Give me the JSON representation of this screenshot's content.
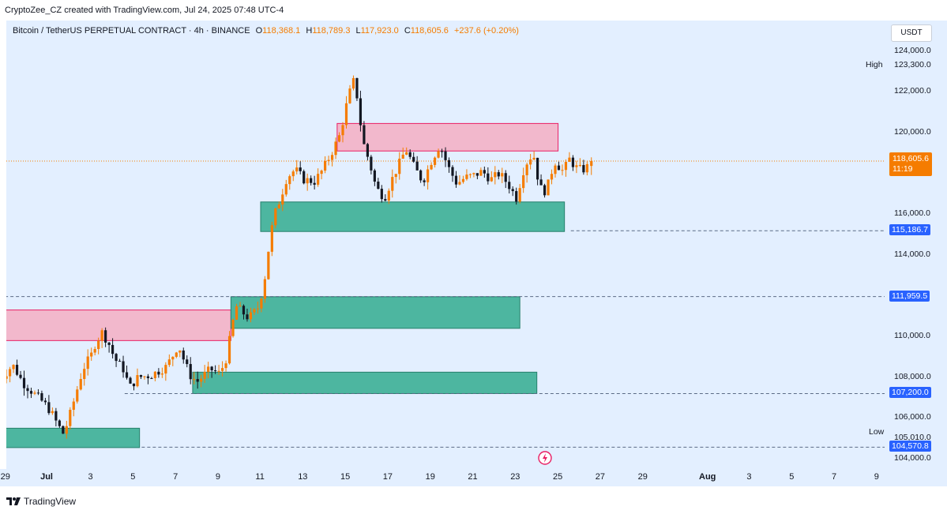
{
  "header": {
    "credit": "CryptoZee_CZ created with TradingView.com, Jul 24, 2025 07:48 UTC-4"
  },
  "legend": {
    "symbol": "Bitcoin / TetherUS PERPETUAL CONTRACT · 4h · BINANCE",
    "o_label": "O",
    "o_value": "118,368.1",
    "h_label": "H",
    "h_value": "118,789.3",
    "l_label": "L",
    "l_value": "117,923.0",
    "c_label": "C",
    "c_value": "118,605.6",
    "change": "+237.6 (+0.20%)"
  },
  "price_axis": {
    "currency": "USDT",
    "high_label": "High",
    "low_label": "Low",
    "current_price": "118,605.6",
    "countdown": "11:19"
  },
  "colors": {
    "background": "#e3efff",
    "up": "#f57c00",
    "down": "#131722",
    "supply_fill": "#f2b8cc",
    "supply_border": "#e91e63",
    "demand_fill": "#4db6a0",
    "demand_border": "#26806b",
    "price_tag": "#f57c00",
    "level_tag": "#2962ff"
  },
  "footer": {
    "brand": "TradingView"
  },
  "chart_data": {
    "type": "candlestick",
    "title": "Bitcoin / TetherUS PERPETUAL CONTRACT · 4h · BINANCE",
    "timeframe": "4h",
    "ylim": [
      103500,
      125500
    ],
    "y_ticks": [
      {
        "value": 124000,
        "label": "124,000.0"
      },
      {
        "value": 123300,
        "label": "123,300.0"
      },
      {
        "value": 122000,
        "label": "122,000.0"
      },
      {
        "value": 120000,
        "label": "120,000.0"
      },
      {
        "value": 116000,
        "label": "116,000.0"
      },
      {
        "value": 114000,
        "label": "114,000.0"
      },
      {
        "value": 110000,
        "label": "110,000.0"
      },
      {
        "value": 108000,
        "label": "108,000.0"
      },
      {
        "value": 106000,
        "label": "106,000.0"
      },
      {
        "value": 105010,
        "label": "105,010.0"
      },
      {
        "value": 104000,
        "label": "104,000.0"
      }
    ],
    "x_ticks": [
      "29",
      "Jul",
      "3",
      "5",
      "7",
      "9",
      "11",
      "13",
      "15",
      "17",
      "19",
      "21",
      "23",
      "25",
      "27",
      "29",
      "Aug",
      "3",
      "5",
      "7",
      "9"
    ],
    "x_tick_days": [
      -2,
      0,
      2,
      4,
      6,
      8,
      10,
      12,
      14,
      16,
      18,
      20,
      22,
      24,
      26,
      28,
      31,
      33,
      35,
      37,
      39
    ],
    "high": 123300,
    "low": 105010,
    "current_price": 118605.6,
    "levels": [
      {
        "price": 115186.7,
        "label": "115,186.7"
      },
      {
        "price": 111959.5,
        "label": "111,959.5"
      },
      {
        "price": 107200.0,
        "label": "107,200.0"
      },
      {
        "price": 104570.8,
        "label": "104,570.8"
      }
    ],
    "supply_zones": [
      {
        "from_day": -2.3,
        "to_day": 8.6,
        "top": 111300,
        "bottom": 109800
      },
      {
        "from_day": 13.6,
        "to_day": 24.0,
        "top": 120450,
        "bottom": 119100
      }
    ],
    "demand_zones": [
      {
        "from_day": -2.3,
        "to_day": 4.3,
        "top": 105500,
        "bottom": 104550
      },
      {
        "from_day": 6.8,
        "to_day": 23.0,
        "top": 108250,
        "bottom": 107200
      },
      {
        "from_day": 8.6,
        "to_day": 22.2,
        "top": 111950,
        "bottom": 110400
      },
      {
        "from_day": 10.0,
        "to_day": 24.3,
        "top": 116600,
        "bottom": 115150
      }
    ],
    "anchors": [
      [
        -2,
        108000
      ],
      [
        -1.5,
        108600
      ],
      [
        -1,
        107700
      ],
      [
        -0.5,
        107200
      ],
      [
        0,
        106700
      ],
      [
        0.3,
        106300
      ],
      [
        0.6,
        105700
      ],
      [
        0.9,
        105200
      ],
      [
        1.2,
        106200
      ],
      [
        1.5,
        107300
      ],
      [
        1.8,
        108400
      ],
      [
        2.2,
        109100
      ],
      [
        2.4,
        109700
      ],
      [
        2.7,
        110200
      ],
      [
        3.0,
        109700
      ],
      [
        3.3,
        108900
      ],
      [
        3.7,
        108400
      ],
      [
        4.0,
        107500
      ],
      [
        4.4,
        108000
      ],
      [
        5.0,
        108100
      ],
      [
        5.7,
        108500
      ],
      [
        6.0,
        109000
      ],
      [
        6.3,
        109600
      ],
      [
        6.6,
        108700
      ],
      [
        6.9,
        108000
      ],
      [
        7.2,
        107800
      ],
      [
        7.8,
        108400
      ],
      [
        8.2,
        108200
      ],
      [
        8.5,
        108700
      ],
      [
        8.7,
        109800
      ],
      [
        9.0,
        111500
      ],
      [
        9.3,
        111200
      ],
      [
        9.6,
        110900
      ],
      [
        9.8,
        111100
      ],
      [
        10.1,
        111500
      ],
      [
        10.4,
        113100
      ],
      [
        10.6,
        114800
      ],
      [
        10.8,
        115900
      ],
      [
        11.1,
        116800
      ],
      [
        11.4,
        117800
      ],
      [
        11.8,
        118200
      ],
      [
        12.2,
        117700
      ],
      [
        12.7,
        117600
      ],
      [
        13.1,
        118200
      ],
      [
        13.5,
        119000
      ],
      [
        13.9,
        119900
      ],
      [
        14.3,
        121800
      ],
      [
        14.6,
        122700
      ],
      [
        14.8,
        120900
      ],
      [
        15.0,
        119500
      ],
      [
        15.3,
        118500
      ],
      [
        15.6,
        117300
      ],
      [
        16.0,
        116800
      ],
      [
        16.3,
        117600
      ],
      [
        16.7,
        118500
      ],
      [
        17.0,
        119200
      ],
      [
        17.4,
        118300
      ],
      [
        17.8,
        117600
      ],
      [
        18.2,
        118600
      ],
      [
        18.6,
        119400
      ],
      [
        19.0,
        118300
      ],
      [
        19.4,
        117500
      ],
      [
        19.8,
        117800
      ],
      [
        20.2,
        117900
      ],
      [
        20.6,
        118100
      ],
      [
        21.0,
        117700
      ],
      [
        21.4,
        118000
      ],
      [
        21.8,
        117500
      ],
      [
        22.2,
        116800
      ],
      [
        22.6,
        118400
      ],
      [
        23.0,
        119000
      ],
      [
        23.3,
        117300
      ],
      [
        23.6,
        117100
      ],
      [
        24.0,
        118600
      ],
      [
        24.4,
        118100
      ],
      [
        24.7,
        118700
      ],
      [
        25.0,
        118300
      ],
      [
        25.3,
        118150
      ],
      [
        25.6,
        118368.1
      ]
    ],
    "last_candle": {
      "open": 118368.1,
      "high": 118789.3,
      "low": 117923.0,
      "close": 118605.6
    }
  }
}
